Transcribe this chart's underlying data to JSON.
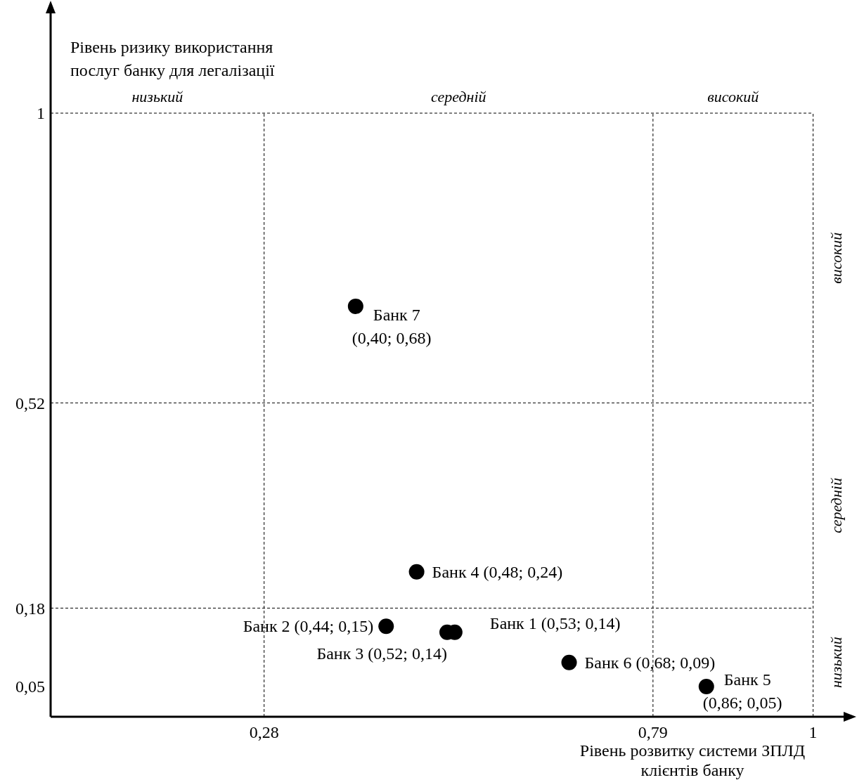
{
  "chart_data": {
    "type": "scatter",
    "xlabel": "Рівень розвитку системи ЗПЛД клієнтів банку",
    "ylabel": "Рівень ризику використання послуг банку для легалізації",
    "x": [
      0.53,
      0.44,
      0.52,
      0.48,
      0.86,
      0.68,
      0.4
    ],
    "values": [
      0.14,
      0.15,
      0.14,
      0.24,
      0.05,
      0.09,
      0.68
    ],
    "value_labels": [
      "Банк 1 (0,53; 0,14)",
      "Банк 2 (0,44; 0,15)",
      "Банк 3 (0,52; 0,14)",
      "Банк 4 (0,48; 0,24)",
      "Банк 5 (0,86; 0,05)",
      "Банк 6 (0,68; 0,09)",
      "Банк 7 (0,40; 0,68)"
    ],
    "color": "#000000",
    "marker": "circle",
    "xlim": [
      0,
      1.04
    ],
    "ylim": [
      0,
      1.17
    ],
    "xticks": [
      {
        "value": 0.28,
        "label": "0,28"
      },
      {
        "value": 0.79,
        "label": "0,79"
      },
      {
        "value": 1,
        "label": "1"
      }
    ],
    "yticks": [
      {
        "value": 0.05,
        "label": "0,05"
      },
      {
        "value": 0.18,
        "label": "0,18"
      },
      {
        "value": 0.52,
        "label": "0,52"
      },
      {
        "value": 1,
        "label": "1"
      }
    ],
    "ref_lines": [
      {
        "axis": "x",
        "value": 0.28,
        "line_style": "dashed"
      },
      {
        "axis": "x",
        "value": 0.79,
        "line_style": "dashed"
      },
      {
        "axis": "x",
        "value": 1,
        "line_style": "dashed"
      },
      {
        "axis": "y",
        "value": 0.18,
        "line_style": "dashed"
      },
      {
        "axis": "y",
        "value": 0.52,
        "line_style": "dashed"
      },
      {
        "axis": "y",
        "value": 1,
        "line_style": "dashed"
      }
    ],
    "annotations": [
      "низький",
      "середній",
      "високий",
      "низький",
      "середній",
      "високий"
    ]
  }
}
